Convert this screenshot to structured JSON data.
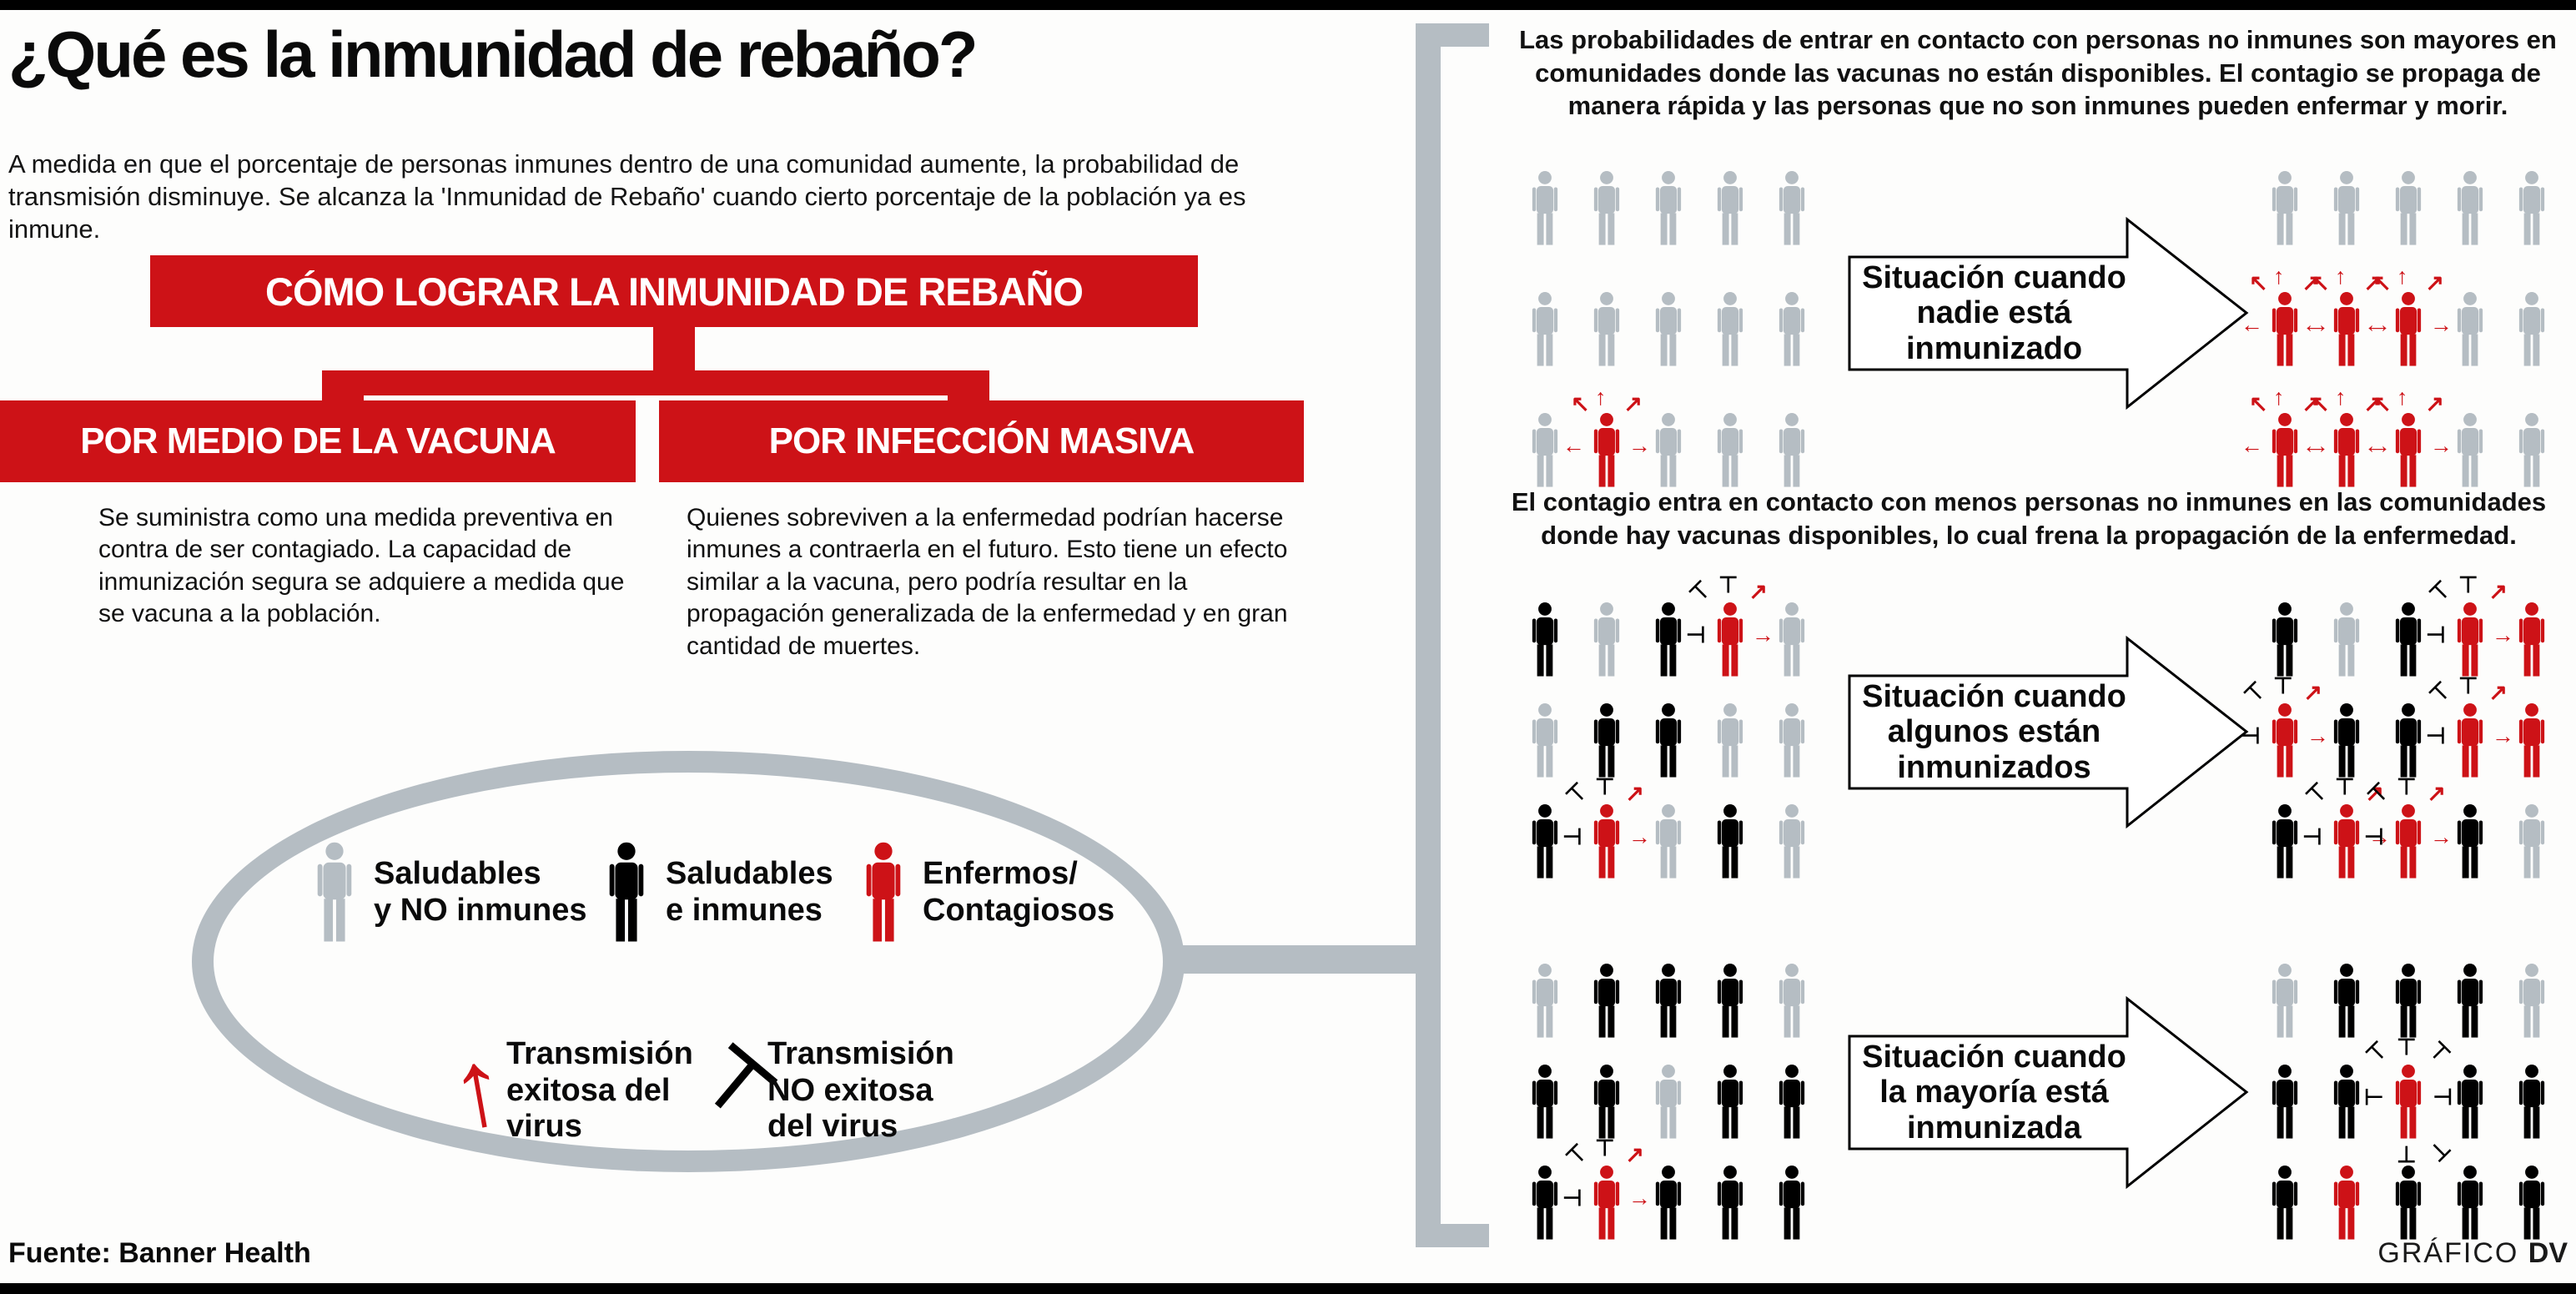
{
  "colors": {
    "red": "#cd1217",
    "gray": "#b5bdc3",
    "black": "#000000"
  },
  "header": {
    "title": "¿Qué es la inmunidad de rebaño?",
    "intro": "A medida en que el porcentaje de personas inmunes dentro de una comunidad aumente, la probabilidad de transmisión disminuye. Se alcanza la 'Inmunidad de Rebaño' cuando cierto porcentaje de la población ya es inmune."
  },
  "tree": {
    "root": "CÓMO LOGRAR LA INMUNIDAD DE REBAÑO",
    "vaccine": {
      "title": "POR MEDIO DE LA VACUNA",
      "body": "Se suministra como una medida preventiva en contra de ser contagiado. La capacidad de inmunización segura se adquiere a medida que se vacuna a la población."
    },
    "infection": {
      "title": "POR INFECCIÓN MASIVA",
      "body": "Quienes sobreviven a la enfermedad podrían hacerse inmunes a contraerla en el futuro. Esto tiene un efecto similar a la vacuna, pero podría resultar en la propagación generalizada de la enfermedad y en gran cantidad de muertes."
    }
  },
  "legend": {
    "people": [
      {
        "color_key": "gray",
        "label": [
          "Saludables",
          "y NO inmunes"
        ]
      },
      {
        "color_key": "black",
        "label": [
          "Saludables",
          "e inmunes"
        ]
      },
      {
        "color_key": "red",
        "label": [
          "Enfermos/",
          "Contagiosos"
        ]
      }
    ],
    "transmission": [
      {
        "symbol": "successful-arrow",
        "label": [
          "Transmisión",
          "exitosa del",
          "virus"
        ]
      },
      {
        "symbol": "blocked-tbar",
        "label": [
          "Transmisión",
          "NO exitosa",
          "del virus"
        ]
      }
    ]
  },
  "scenarios": [
    {
      "intro": "Las probabilidades de entrar en contacto con personas no inmunes son mayores en comunidades donde las vacunas no están disponibles. El contagio se propaga de manera rápida y las personas que no son inmunes pueden enfermar y morir.",
      "label": [
        "Situación cuando",
        "nadie está",
        "inmunizado"
      ],
      "left_grid": [
        [
          "G",
          "G",
          "G",
          "G",
          "G"
        ],
        [
          "G",
          "G",
          "G",
          "G",
          "G"
        ],
        [
          "G",
          "R+",
          "G",
          "G",
          "G"
        ]
      ],
      "right_grid": [
        [
          "G",
          "G",
          "G",
          "G",
          "G"
        ],
        [
          "R+",
          "R+",
          "R+",
          "G",
          "G"
        ],
        [
          "R+",
          "R+",
          "R+",
          "G",
          "G"
        ]
      ]
    },
    {
      "intro": "El contagio entra en contacto con menos personas no inmunes en las comunidades donde hay vacunas disponibles, lo cual frena la propagación de la enfermedad.",
      "label": [
        "Situación cuando",
        "algunos están",
        "inmunizados"
      ],
      "left_grid": [
        [
          "B",
          "G",
          "B",
          "R#",
          "G"
        ],
        [
          "G",
          "B",
          "B",
          "G",
          "G"
        ],
        [
          "B",
          "R#",
          "G",
          "B",
          "G"
        ]
      ],
      "right_grid": [
        [
          "B",
          "G",
          "B",
          "R#",
          "R"
        ],
        [
          "R#",
          "B",
          "B",
          "R#",
          "R"
        ],
        [
          "B",
          "R#",
          "R#",
          "B",
          "G"
        ]
      ]
    },
    {
      "intro": "",
      "label": [
        "Situación cuando",
        "la mayoría está",
        "inmunizada"
      ],
      "left_grid": [
        [
          "G",
          "B",
          "B",
          "B",
          "G"
        ],
        [
          "B",
          "B",
          "G",
          "B",
          "B"
        ],
        [
          "B",
          "R#",
          "B",
          "B",
          "B"
        ]
      ],
      "right_grid": [
        [
          "G",
          "B",
          "B",
          "B",
          "G"
        ],
        [
          "B",
          "B",
          "RO",
          "B",
          "B"
        ],
        [
          "B",
          "R",
          "B",
          "B",
          "B"
        ]
      ]
    }
  ],
  "footer": {
    "source": "Fuente: Banner Health",
    "credit_label": "GRÁFICO ",
    "credit_brand": "DV"
  }
}
